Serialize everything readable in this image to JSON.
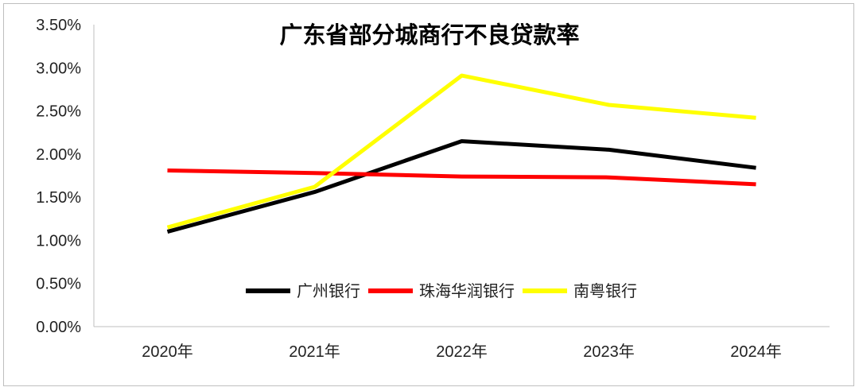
{
  "chart_data": {
    "type": "line",
    "title": "广东省部分城商行不良贷款率",
    "xlabel": "",
    "ylabel": "",
    "categories": [
      "2020年",
      "2021年",
      "2022年",
      "2023年",
      "2024年"
    ],
    "y_ticks": [
      "0.00%",
      "0.50%",
      "1.00%",
      "1.50%",
      "2.00%",
      "2.50%",
      "3.00%",
      "3.50%"
    ],
    "ylim": [
      0,
      3.5
    ],
    "y_unit": "%",
    "grid": false,
    "legend_position": "bottom-center (inside plot area)",
    "series": [
      {
        "name": "广州银行",
        "color": "#000000",
        "values": [
          1.1,
          1.56,
          2.15,
          2.05,
          1.84
        ]
      },
      {
        "name": "珠海华润银行",
        "color": "#ff0000",
        "values": [
          1.81,
          1.78,
          1.74,
          1.73,
          1.65
        ]
      },
      {
        "name": "南粤银行",
        "color": "#ffff00",
        "values": [
          1.15,
          1.62,
          2.91,
          2.57,
          2.42
        ]
      }
    ]
  }
}
